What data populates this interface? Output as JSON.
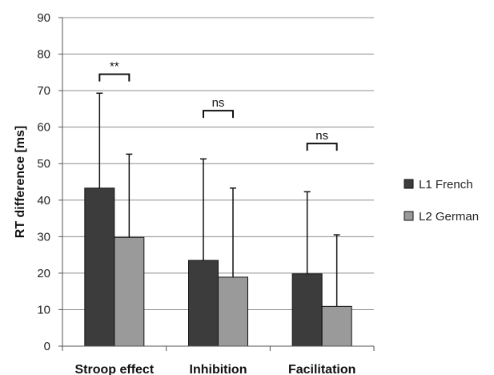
{
  "chart_data": {
    "type": "bar",
    "title": "",
    "xlabel": "",
    "ylabel": "RT difference [ms]",
    "ylim": [
      0,
      90
    ],
    "yticks": [
      0,
      10,
      20,
      30,
      40,
      50,
      60,
      70,
      80,
      90
    ],
    "grid": true,
    "legend_position": "right",
    "categories": [
      "Stroop effect",
      "Inhibition",
      "Facilitation"
    ],
    "series": [
      {
        "name": "L1 French",
        "color": "#3c3c3c",
        "values": [
          43.3,
          23.5,
          19.8
        ],
        "error": [
          26.0,
          27.8,
          22.5
        ]
      },
      {
        "name": "L2 German",
        "color": "#9a9a9a",
        "values": [
          29.8,
          18.9,
          10.9
        ],
        "error": [
          22.8,
          24.4,
          19.6
        ]
      }
    ],
    "annotations": [
      {
        "category": "Stroop effect",
        "label": "**",
        "y": 74.5
      },
      {
        "category": "Inhibition",
        "label": "ns",
        "y": 64.5
      },
      {
        "category": "Facilitation",
        "label": "ns",
        "y": 55.5
      }
    ]
  }
}
